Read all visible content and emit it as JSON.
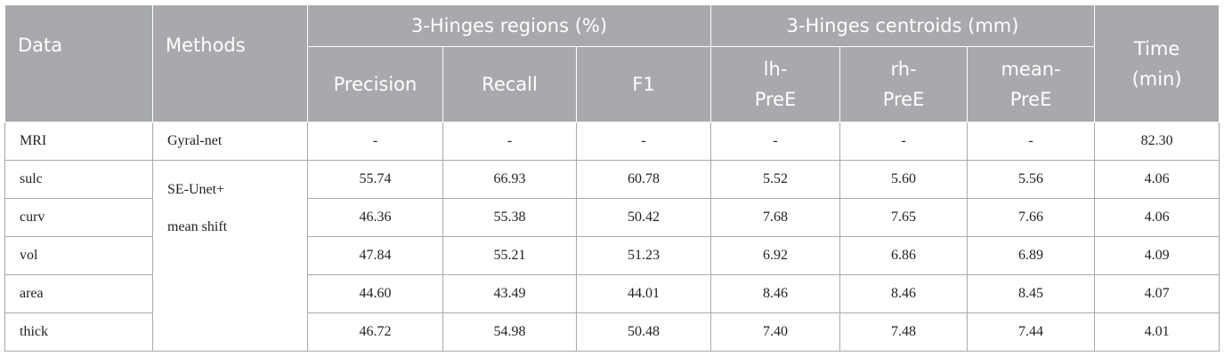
{
  "header": {
    "data": "Data",
    "methods": "Methods",
    "regions_group": "3-Hinges regions (%)",
    "centroids_group": "3-Hinges centroids (mm)",
    "time_line1": "Time",
    "time_line2": "(min)",
    "precision": "Precision",
    "recall": "Recall",
    "f1": "F1",
    "lh_line1": "lh-",
    "lh_line2": "PreE",
    "rh_line1": "rh-",
    "rh_line2": "PreE",
    "mean_line1": "mean-",
    "mean_line2": "PreE"
  },
  "methods": {
    "gyral": "Gyral-net",
    "se_line1": "SE-Unet+",
    "se_line2": "mean shift"
  },
  "rows": [
    {
      "data": "MRI",
      "precision": "-",
      "recall": "-",
      "f1": "-",
      "lh": "-",
      "rh": "-",
      "mean": "-",
      "time": "82.30"
    },
    {
      "data": "sulc",
      "precision": "55.74",
      "recall": "66.93",
      "f1": "60.78",
      "lh": "5.52",
      "rh": "5.60",
      "mean": "5.56",
      "time": "4.06"
    },
    {
      "data": "curv",
      "precision": "46.36",
      "recall": "55.38",
      "f1": "50.42",
      "lh": "7.68",
      "rh": "7.65",
      "mean": "7.66",
      "time": "4.06"
    },
    {
      "data": "vol",
      "precision": "47.84",
      "recall": "55.21",
      "f1": "51.23",
      "lh": "6.92",
      "rh": "6.86",
      "mean": "6.89",
      "time": "4.09"
    },
    {
      "data": "area",
      "precision": "44.60",
      "recall": "43.49",
      "f1": "44.01",
      "lh": "8.46",
      "rh": "8.46",
      "mean": "8.45",
      "time": "4.07"
    },
    {
      "data": "thick",
      "precision": "46.72",
      "recall": "54.98",
      "f1": "50.48",
      "lh": "7.40",
      "rh": "7.48",
      "mean": "7.44",
      "time": "4.01"
    }
  ]
}
